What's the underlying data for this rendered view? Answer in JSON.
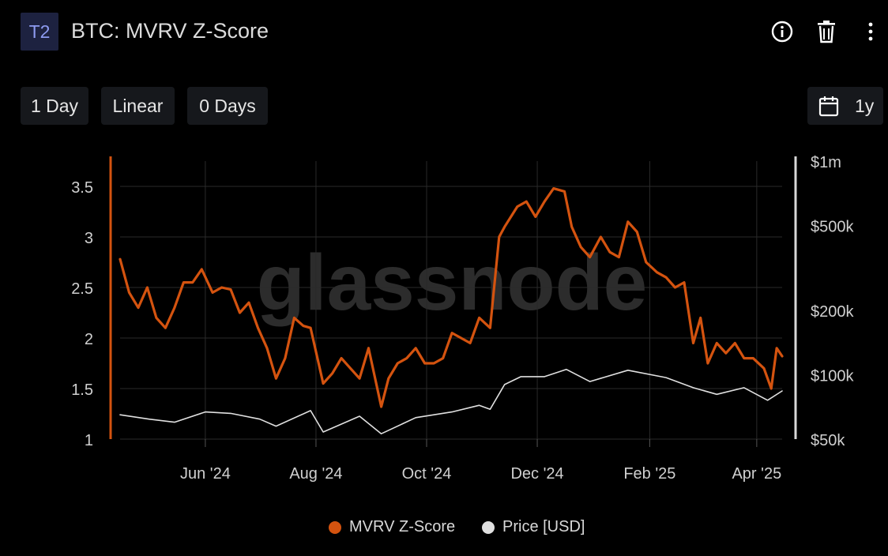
{
  "header": {
    "badge": "T2",
    "title": "BTC: MVRV Z-Score",
    "icons": [
      "info-icon",
      "trash-icon",
      "more-vertical-icon"
    ]
  },
  "controls": {
    "resolution": "1 Day",
    "scale": "Linear",
    "moving_average": "0 Days",
    "range": "1y",
    "range_icon": "calendar-icon"
  },
  "watermark": "glassnode",
  "colors": {
    "zscore": "#d4530f",
    "price": "#e0e0e0",
    "background": "#000000",
    "grid": "#2a2a2a",
    "axis_text": "#d0d0d0"
  },
  "legend": {
    "zscore_label": "MVRV Z-Score",
    "price_label": "Price [USD]"
  },
  "chart_data": {
    "type": "line",
    "title": "BTC: MVRV Z-Score",
    "x_ticks": [
      "Jun '24",
      "Aug '24",
      "Oct '24",
      "Dec '24",
      "Feb '25",
      "Apr '25"
    ],
    "x_tick_dates": [
      "2024-06-01",
      "2024-08-01",
      "2024-10-01",
      "2024-12-01",
      "2025-02-01",
      "2025-04-01"
    ],
    "x_range": [
      "2024-04-15",
      "2025-04-15"
    ],
    "left_axis": {
      "ticks": [
        "1",
        "1.5",
        "2",
        "2.5",
        "3",
        "3.5"
      ],
      "range": [
        1,
        3.75
      ]
    },
    "right_axis": {
      "scale": "log",
      "ticks": [
        "$50k",
        "$100k",
        "$200k",
        "$500k",
        "$1m"
      ],
      "tick_values": [
        50000,
        100000,
        200000,
        500000,
        1000000
      ],
      "range": [
        50000,
        1000000
      ]
    },
    "grid": true,
    "legend_position": "bottom-center",
    "series": [
      {
        "name": "MVRV Z-Score",
        "axis": "left",
        "x": [
          "2024-04-15",
          "2024-04-20",
          "2024-04-25",
          "2024-04-30",
          "2024-05-05",
          "2024-05-10",
          "2024-05-15",
          "2024-05-20",
          "2024-05-25",
          "2024-05-30",
          "2024-06-05",
          "2024-06-10",
          "2024-06-15",
          "2024-06-20",
          "2024-06-25",
          "2024-06-30",
          "2024-07-05",
          "2024-07-10",
          "2024-07-15",
          "2024-07-20",
          "2024-07-25",
          "2024-07-29",
          "2024-08-05",
          "2024-08-10",
          "2024-08-15",
          "2024-08-20",
          "2024-08-25",
          "2024-08-30",
          "2024-09-06",
          "2024-09-10",
          "2024-09-15",
          "2024-09-20",
          "2024-09-25",
          "2024-09-30",
          "2024-10-05",
          "2024-10-10",
          "2024-10-15",
          "2024-10-20",
          "2024-10-25",
          "2024-10-30",
          "2024-11-05",
          "2024-11-10",
          "2024-11-13",
          "2024-11-20",
          "2024-11-25",
          "2024-11-30",
          "2024-12-05",
          "2024-12-10",
          "2024-12-16",
          "2024-12-20",
          "2024-12-25",
          "2024-12-30",
          "2025-01-05",
          "2025-01-10",
          "2025-01-15",
          "2025-01-20",
          "2025-01-25",
          "2025-01-30",
          "2025-02-05",
          "2025-02-10",
          "2025-02-15",
          "2025-02-20",
          "2025-02-25",
          "2025-03-01",
          "2025-03-05",
          "2025-03-10",
          "2025-03-15",
          "2025-03-20",
          "2025-03-25",
          "2025-03-30",
          "2025-04-05",
          "2025-04-09",
          "2025-04-12",
          "2025-04-15"
        ],
        "values": [
          2.78,
          2.45,
          2.3,
          2.5,
          2.2,
          2.1,
          2.3,
          2.55,
          2.55,
          2.68,
          2.45,
          2.5,
          2.48,
          2.25,
          2.35,
          2.1,
          1.9,
          1.6,
          1.8,
          2.2,
          2.12,
          2.1,
          1.55,
          1.65,
          1.8,
          1.7,
          1.6,
          1.9,
          1.32,
          1.6,
          1.75,
          1.8,
          1.9,
          1.75,
          1.75,
          1.8,
          2.05,
          2.0,
          1.95,
          2.2,
          2.1,
          3.0,
          3.1,
          3.3,
          3.35,
          3.2,
          3.35,
          3.48,
          3.45,
          3.1,
          2.9,
          2.8,
          3.0,
          2.85,
          2.8,
          3.15,
          3.05,
          2.75,
          2.65,
          2.6,
          2.5,
          2.55,
          1.95,
          2.2,
          1.75,
          1.95,
          1.85,
          1.95,
          1.8,
          1.8,
          1.7,
          1.5,
          1.9,
          1.82
        ]
      },
      {
        "name": "Price [USD]",
        "axis": "right",
        "x": [
          "2024-04-15",
          "2024-05-01",
          "2024-05-15",
          "2024-06-01",
          "2024-06-15",
          "2024-07-01",
          "2024-07-10",
          "2024-07-29",
          "2024-08-05",
          "2024-08-25",
          "2024-09-06",
          "2024-09-25",
          "2024-10-15",
          "2024-10-30",
          "2024-11-05",
          "2024-11-13",
          "2024-11-22",
          "2024-12-05",
          "2024-12-17",
          "2024-12-30",
          "2025-01-20",
          "2025-02-10",
          "2025-02-25",
          "2025-03-10",
          "2025-03-25",
          "2025-04-07",
          "2025-04-15"
        ],
        "values": [
          65000,
          62000,
          60000,
          67000,
          66000,
          62000,
          57500,
          68000,
          54000,
          64000,
          53000,
          63000,
          67000,
          72000,
          69000,
          90000,
          98000,
          98000,
          106000,
          93000,
          105000,
          97000,
          87000,
          81000,
          87000,
          76000,
          84000
        ]
      }
    ]
  }
}
